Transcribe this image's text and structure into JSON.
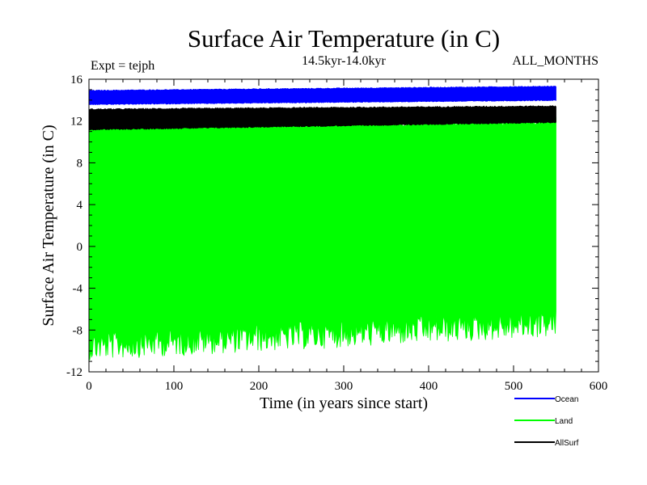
{
  "chart_data": {
    "type": "line",
    "title": "Surface Air Temperature (in C)",
    "subtitle": "14.5kyr-14.0kyr",
    "expt_label": "Expt = tejph",
    "months_label": "ALL_MONTHS",
    "xlabel": "Time (in years since start)",
    "ylabel": "Surface Air Temperature (in C)",
    "xlim": [
      0,
      600
    ],
    "ylim": [
      -12,
      16
    ],
    "x_ticks": [
      "0",
      "100",
      "200",
      "300",
      "400",
      "500",
      "600"
    ],
    "y_ticks": [
      "-12",
      "-8",
      "-4",
      "0",
      "4",
      "8",
      "12",
      "16"
    ],
    "series": [
      {
        "name": "Ocean",
        "color": "#0000ff",
        "x_range": [
          0,
          550
        ],
        "min_start": 13.6,
        "min_end": 14.0,
        "max_start": 14.9,
        "max_end": 15.3
      },
      {
        "name": "Land",
        "color": "#00ff00",
        "x_range": [
          0,
          550
        ],
        "min_start": -9.0,
        "min_end": -6.8,
        "max_start": 11.5,
        "max_end": 12.0
      },
      {
        "name": "AllSurf",
        "color": "#000000",
        "x_range": [
          0,
          550
        ],
        "min_start": 11.2,
        "min_end": 11.9,
        "max_start": 13.1,
        "max_end": 13.4
      }
    ],
    "legend_position": "bottom-right"
  }
}
